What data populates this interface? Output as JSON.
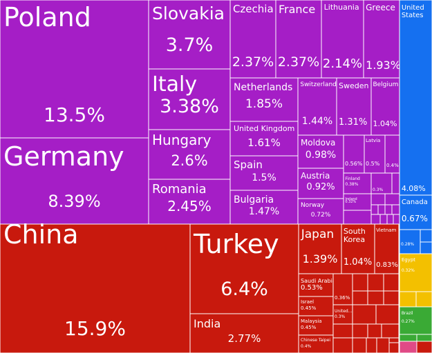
{
  "chart_data": {
    "type": "treemap",
    "title": "",
    "colors": {
      "europe": "#a51ec6",
      "asia": "#c8190d",
      "north_america": "#1570f0",
      "africa": "#f3c000",
      "south_america": "#3aaa35",
      "oceania": "#e04a86"
    },
    "items": [
      {
        "name": "Poland",
        "share": "13.5%",
        "value": 13.5,
        "group": "europe"
      },
      {
        "name": "Germany",
        "share": "8.39%",
        "value": 8.39,
        "group": "europe"
      },
      {
        "name": "Slovakia",
        "share": "3.7%",
        "value": 3.7,
        "group": "europe"
      },
      {
        "name": "Italy",
        "share": "3.38%",
        "value": 3.38,
        "group": "europe"
      },
      {
        "name": "Hungary",
        "share": "2.6%",
        "value": 2.6,
        "group": "europe"
      },
      {
        "name": "Romania",
        "share": "2.45%",
        "value": 2.45,
        "group": "europe"
      },
      {
        "name": "Czechia",
        "share": "2.37%",
        "value": 2.37,
        "group": "europe"
      },
      {
        "name": "France",
        "share": "2.37%",
        "value": 2.37,
        "group": "europe"
      },
      {
        "name": "Lithuania",
        "share": "2.14%",
        "value": 2.14,
        "group": "europe"
      },
      {
        "name": "Greece",
        "share": "1.93%",
        "value": 1.93,
        "group": "europe"
      },
      {
        "name": "Netherlands",
        "share": "1.85%",
        "value": 1.85,
        "group": "europe"
      },
      {
        "name": "United Kingdom",
        "share": "1.61%",
        "value": 1.61,
        "group": "europe"
      },
      {
        "name": "Spain",
        "share": "1.5%",
        "value": 1.5,
        "group": "europe"
      },
      {
        "name": "Bulgaria",
        "share": "1.47%",
        "value": 1.47,
        "group": "europe"
      },
      {
        "name": "Switzerland",
        "share": "1.44%",
        "value": 1.44,
        "group": "europe"
      },
      {
        "name": "Sweden",
        "share": "1.31%",
        "value": 1.31,
        "group": "europe"
      },
      {
        "name": "Belgium",
        "share": "1.04%",
        "value": 1.04,
        "group": "europe"
      },
      {
        "name": "Moldova",
        "share": "0.98%",
        "value": 0.98,
        "group": "europe"
      },
      {
        "name": "Austria",
        "share": "0.92%",
        "value": 0.92,
        "group": "europe"
      },
      {
        "name": "Norway",
        "share": "0.72%",
        "value": 0.72,
        "group": "europe"
      },
      {
        "name": "",
        "share": "0.56%",
        "value": 0.56,
        "group": "europe"
      },
      {
        "name": "Latvia",
        "share": "0.5%",
        "value": 0.5,
        "group": "europe"
      },
      {
        "name": "",
        "share": "0.4%",
        "value": 0.4,
        "group": "europe"
      },
      {
        "name": "Finland",
        "share": "0.38%",
        "value": 0.38,
        "group": "europe"
      },
      {
        "name": "Ireland",
        "share": "0.32%",
        "value": 0.32,
        "group": "europe"
      },
      {
        "name": "",
        "share": "0.3%",
        "value": 0.3,
        "group": "europe"
      },
      {
        "name": "China",
        "share": "15.9%",
        "value": 15.9,
        "group": "asia"
      },
      {
        "name": "Turkey",
        "share": "6.4%",
        "value": 6.4,
        "group": "asia"
      },
      {
        "name": "India",
        "share": "2.77%",
        "value": 2.77,
        "group": "asia"
      },
      {
        "name": "Japan",
        "share": "1.39%",
        "value": 1.39,
        "group": "asia"
      },
      {
        "name": "South Korea",
        "share": "1.04%",
        "value": 1.04,
        "group": "asia"
      },
      {
        "name": "Vietnam",
        "share": "0.83%",
        "value": 0.83,
        "group": "asia"
      },
      {
        "name": "Saudi Arabia",
        "share": "0.53%",
        "value": 0.53,
        "group": "asia"
      },
      {
        "name": "",
        "share": "0.36%",
        "value": 0.36,
        "group": "asia"
      },
      {
        "name": "Israel",
        "share": "0.45%",
        "value": 0.45,
        "group": "asia"
      },
      {
        "name": "United...",
        "share": "0.3%",
        "value": 0.3,
        "group": "asia"
      },
      {
        "name": "Malaysia",
        "share": "0.45%",
        "value": 0.45,
        "group": "asia"
      },
      {
        "name": "Chinese Taipei",
        "share": "0.4%",
        "value": 0.4,
        "group": "asia"
      },
      {
        "name": "United States",
        "share": "4.08%",
        "value": 4.08,
        "group": "north_america"
      },
      {
        "name": "Canada",
        "share": "0.67%",
        "value": 0.67,
        "group": "north_america"
      },
      {
        "name": "",
        "share": "0.28%",
        "value": 0.28,
        "group": "north_america"
      },
      {
        "name": "Egypt",
        "share": "0.32%",
        "value": 0.32,
        "group": "africa"
      },
      {
        "name": "Brazil",
        "share": "0.27%",
        "value": 0.27,
        "group": "south_america"
      }
    ]
  }
}
